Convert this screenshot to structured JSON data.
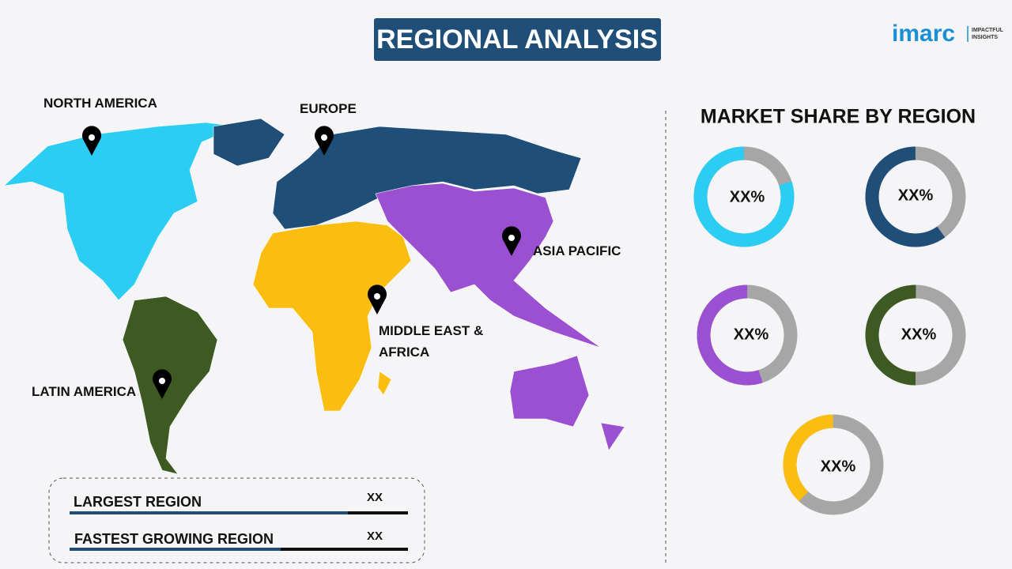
{
  "header": {
    "title": "REGIONAL ANALYSIS",
    "logo": "imarc",
    "logo_tagline": [
      "IMPACTFUL",
      "INSIGHTS"
    ]
  },
  "map": {
    "regions": [
      {
        "label": "NORTH AMERICA",
        "color": "#2ccdf3"
      },
      {
        "label": "EUROPE",
        "color": "#1f4e79"
      },
      {
        "label": "ASIA PACIFIC",
        "color": "#9b4fd1"
      },
      {
        "label": "MIDDLE EAST & AFRICA",
        "color": "#fbbd0f"
      },
      {
        "label": "LATIN AMERICA",
        "color": "#3d5a22"
      }
    ]
  },
  "market_share": {
    "title": "MARKET SHARE BY REGION",
    "donuts": [
      {
        "label": "XX%",
        "color": "#2ccdf3"
      },
      {
        "label": "XX%",
        "color": "#1f4e79"
      },
      {
        "label": "XX%",
        "color": "#9b4fd1"
      },
      {
        "label": "XX%",
        "color": "#3d5a22"
      },
      {
        "label": "XX%",
        "color": "#fbbd0f"
      }
    ]
  },
  "summary": {
    "rows": [
      {
        "label": "LARGEST REGION",
        "value": "XX"
      },
      {
        "label": "FASTEST GROWING REGION",
        "value": "XX"
      }
    ]
  }
}
